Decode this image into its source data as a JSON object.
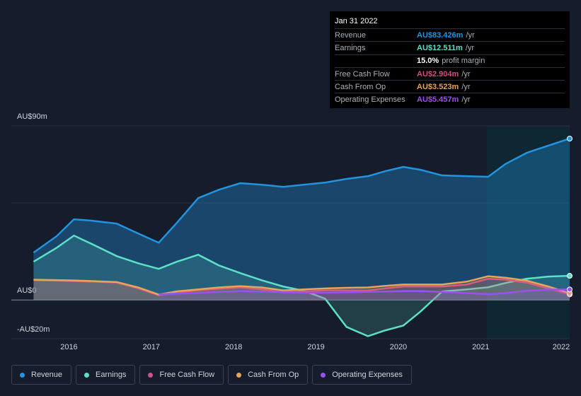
{
  "chart_data": {
    "type": "line",
    "x": [
      2015.57,
      2015.85,
      2016.06,
      2016.28,
      2016.58,
      2016.84,
      2017.09,
      2017.31,
      2017.57,
      2017.82,
      2018.08,
      2018.34,
      2018.6,
      2018.85,
      2019.11,
      2019.37,
      2019.63,
      2019.84,
      2020.06,
      2020.27,
      2020.53,
      2020.83,
      2021.09,
      2021.3,
      2021.56,
      2021.82,
      2022.08
    ],
    "series": [
      {
        "name": "Revenue",
        "color": "#2394df",
        "values": [
          24.5,
          33,
          41.7,
          41,
          39.5,
          34.4,
          29.6,
          39.9,
          52.7,
          57,
          60.4,
          59.6,
          58.5,
          59.6,
          60.7,
          62.6,
          64,
          66.6,
          68.8,
          67.3,
          64.4,
          64,
          63.7,
          70.3,
          76.1,
          79.8,
          83.426
        ]
      },
      {
        "name": "Earnings",
        "color": "#5ce0c8",
        "values": [
          19.8,
          27,
          33.3,
          28.9,
          22.7,
          19,
          16.1,
          19.8,
          23.4,
          17.9,
          13.9,
          10.2,
          7,
          4.8,
          0.7,
          -13.9,
          -18.7,
          -15.7,
          -13.2,
          -5.9,
          4.4,
          5.5,
          6.6,
          8.8,
          11,
          12.1,
          12.511
        ]
      },
      {
        "name": "Free Cash Flow",
        "color": "#d34f84",
        "values": [
          10.2,
          10,
          9.8,
          9.5,
          9,
          6,
          2.5,
          4,
          5,
          5.8,
          6.5,
          5.5,
          4,
          4.5,
          5,
          5,
          5,
          6,
          7,
          7,
          7,
          8,
          11,
          10.5,
          9,
          6,
          2.904
        ]
      },
      {
        "name": "Cash From Op",
        "color": "#e8a45a",
        "values": [
          10.5,
          10.3,
          10.1,
          9.8,
          9.3,
          6.5,
          2.8,
          4.5,
          5.5,
          6.5,
          7.2,
          6.5,
          5,
          5.5,
          6,
          6.3,
          6.5,
          7.3,
          8,
          8,
          8,
          9.5,
          12.3,
          11.5,
          10,
          7,
          3.523
        ]
      },
      {
        "name": "Operating Expenses",
        "color": "#9d4ff0",
        "values": [
          null,
          null,
          null,
          null,
          null,
          null,
          3,
          3.3,
          3.7,
          4.2,
          4.6,
          4.4,
          4,
          3.8,
          3.8,
          4,
          4.2,
          4.4,
          4.6,
          4.6,
          4.2,
          3.6,
          3,
          3.6,
          4.8,
          5.4,
          5.457
        ]
      }
    ],
    "xlim": [
      2015.3,
      2022.08
    ],
    "xticks": [
      2016,
      2017,
      2018,
      2019,
      2020,
      2021,
      2022
    ],
    "ylim": [
      -20,
      90
    ],
    "yticks": [
      {
        "value": 90,
        "label": "AU$90m"
      },
      {
        "value": 0,
        "label": "AU$0"
      },
      {
        "value": -20,
        "label": "-AU$20m"
      }
    ],
    "tooltip": {
      "date": "Jan 31 2022",
      "rows": [
        {
          "label": "Revenue",
          "value": "AU$83.426m",
          "unit": "/yr"
        },
        {
          "label": "Earnings",
          "value": "AU$12.511m",
          "unit": "/yr"
        },
        {
          "label": "Free Cash Flow",
          "value": "AU$2.904m",
          "unit": "/yr"
        },
        {
          "label": "Cash From Op",
          "value": "AU$3.523m",
          "unit": "/yr"
        },
        {
          "label": "Operating Expenses",
          "value": "AU$5.457m",
          "unit": "/yr"
        }
      ],
      "margin": {
        "value": "15.0%",
        "label": "profit margin"
      }
    }
  }
}
